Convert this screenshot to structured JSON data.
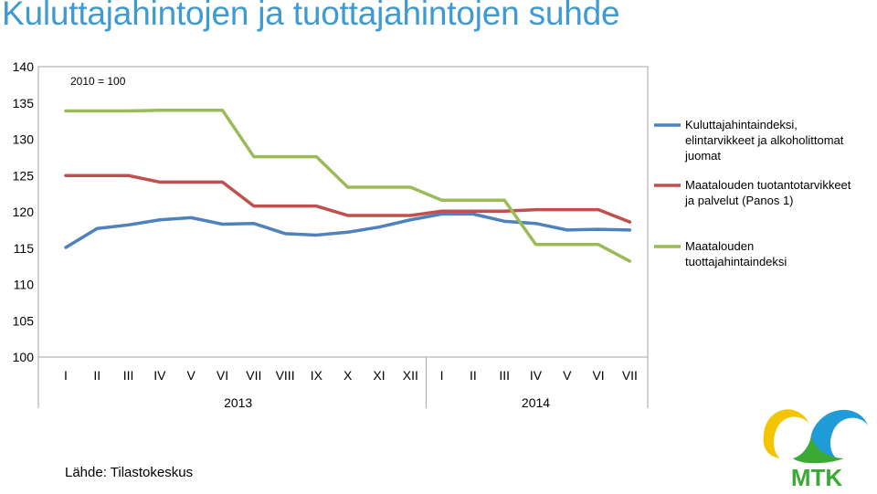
{
  "title": "Kuluttajahintojen ja tuottajahintojen suhde",
  "source": "Lähde: Tilastokeskus",
  "logo_text": "MTK",
  "chart_data": {
    "type": "line",
    "annotation": "2010 = 100",
    "ylim": [
      100,
      140
    ],
    "yticks": [
      100,
      105,
      110,
      115,
      120,
      125,
      130,
      135,
      140
    ],
    "categories": [
      "I",
      "II",
      "III",
      "IV",
      "V",
      "VI",
      "VII",
      "VIII",
      "IX",
      "X",
      "XI",
      "XII",
      "I",
      "II",
      "III",
      "IV",
      "V",
      "VI",
      "VII"
    ],
    "years": [
      {
        "label": "2013",
        "start": 0,
        "end": 11
      },
      {
        "label": "2014",
        "start": 12,
        "end": 18
      }
    ],
    "series": [
      {
        "name": "Kuluttajahintaindeksi, elintarvikkeet ja alkoholittomat juomat",
        "legend_lines": [
          "Kuluttajahintaindeksi,",
          "elintarvikkeet ja alkoholittomat",
          "juomat"
        ],
        "color": "#4f81bd",
        "values": [
          115.1,
          117.7,
          118.2,
          118.9,
          119.2,
          118.3,
          118.4,
          117.0,
          116.8,
          117.2,
          117.9,
          118.9,
          119.7,
          119.7,
          118.7,
          118.4,
          117.5,
          117.6,
          117.5
        ]
      },
      {
        "name": "Maatalouden tuotantotarvikkeet ja palvelut (Panos 1)",
        "legend_lines": [
          "Maatalouden tuotantotarvikkeet",
          "ja palvelut (Panos 1)"
        ],
        "color": "#c0504d",
        "values": [
          125.0,
          125.0,
          125.0,
          124.1,
          124.1,
          124.1,
          120.8,
          120.8,
          120.8,
          119.5,
          119.5,
          119.5,
          120.1,
          120.1,
          120.1,
          120.3,
          120.3,
          120.3,
          118.6
        ]
      },
      {
        "name": "Maatalouden tuottajahintaindeksi",
        "legend_lines": [
          "Maatalouden",
          "tuottajahintaindeksi"
        ],
        "color": "#9bbb59",
        "values": [
          133.9,
          133.9,
          133.9,
          134.0,
          134.0,
          134.0,
          127.6,
          127.6,
          127.6,
          123.4,
          123.4,
          123.4,
          121.6,
          121.6,
          121.6,
          115.5,
          115.5,
          115.5,
          113.2
        ]
      }
    ],
    "grid": false,
    "legend_position": "right"
  },
  "colors": {
    "title": "#3e9ad3",
    "axis": "#a6a6a6"
  }
}
